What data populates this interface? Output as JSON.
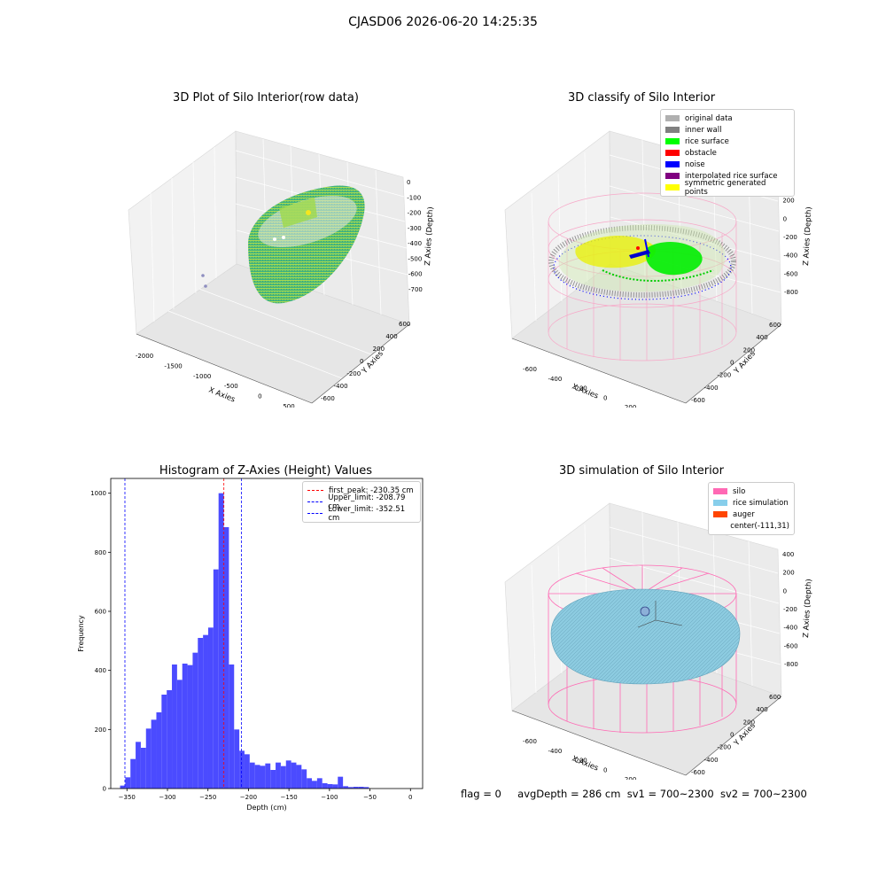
{
  "suptitle": "CJASD06 2026-06-20 14:25:35",
  "panels": {
    "raw": {
      "title": "3D Plot of Silo Interior(row data)",
      "xlabel": "X Axies",
      "ylabel": "Y Axies",
      "zlabel": "Z Axies (Depth)",
      "xticks": [
        "-2000",
        "-1500",
        "-1000",
        "-500",
        "0",
        "500"
      ],
      "yticks": [
        "-600",
        "-400",
        "-200",
        "0",
        "200",
        "400",
        "600"
      ],
      "zticks": [
        "0",
        "-100",
        "-200",
        "-300",
        "-400",
        "-500",
        "-600",
        "-700"
      ]
    },
    "classify": {
      "title": "3D classify of Silo Interior",
      "xlabel": "X Axies",
      "ylabel": "Y Axies",
      "zlabel": "Z Axies (Depth)",
      "xticks": [
        "-600",
        "-400",
        "-200",
        "0",
        "200",
        "400"
      ],
      "yticks": [
        "-600",
        "-400",
        "-200",
        "0",
        "200",
        "400",
        "600"
      ],
      "zticks": [
        "400",
        "200",
        "0",
        "-200",
        "-400",
        "-600",
        "-800"
      ],
      "legend": [
        {
          "label": "original data",
          "color": "#b0b0b0"
        },
        {
          "label": "inner wall",
          "color": "#808080"
        },
        {
          "label": "rice surface",
          "color": "#00ff00"
        },
        {
          "label": "obstacle",
          "color": "#ff0000"
        },
        {
          "label": "noise",
          "color": "#0000ff"
        },
        {
          "label": "interpolated rice surface",
          "color": "#800080"
        },
        {
          "label": "symmetric generated points",
          "color": "#ffff00"
        }
      ]
    },
    "simulation": {
      "title": "3D simulation of Silo Interior",
      "xlabel": "X Axies",
      "ylabel": "Y Axies",
      "zlabel": "Z Axies (Depth)",
      "xticks": [
        "-600",
        "-400",
        "-200",
        "0",
        "200",
        "400"
      ],
      "yticks": [
        "-600",
        "-400",
        "-200",
        "0",
        "200",
        "400",
        "600"
      ],
      "zticks": [
        "400",
        "200",
        "0",
        "-200",
        "-400",
        "-600",
        "-800"
      ],
      "legend": [
        {
          "label": "silo",
          "color": "#ff69b4"
        },
        {
          "label": "rice simulation",
          "color": "#87ceeb"
        },
        {
          "label": "auger",
          "color": "#ff4500"
        },
        {
          "label": "center(-111,31)",
          "color": ""
        }
      ]
    }
  },
  "chart_data": {
    "type": "bar",
    "title": "Histogram of Z-Axies (Height) Values",
    "xlabel": "Depth (cm)",
    "ylabel": "Frequency",
    "xlim": [
      -370,
      15
    ],
    "ylim": [
      0,
      1050
    ],
    "xticks": [
      -350,
      -300,
      -250,
      -200,
      -150,
      -100,
      -50,
      0
    ],
    "yticks": [
      0,
      200,
      400,
      600,
      800,
      1000
    ],
    "bar_color": "#4b4bff",
    "bins": {
      "start": -358.5,
      "width": 6.4,
      "values": [
        10,
        38,
        100,
        158,
        138,
        203,
        233,
        258,
        318,
        333,
        420,
        368,
        423,
        418,
        460,
        510,
        520,
        545,
        742,
        1000,
        885,
        420,
        200,
        128,
        116,
        88,
        80,
        77,
        85,
        63,
        88,
        76,
        95,
        88,
        80,
        65,
        35,
        26,
        35,
        18,
        15,
        14,
        40,
        8,
        5,
        6,
        6,
        5
      ]
    },
    "vlines": [
      {
        "label": "first_peak: -230.35 cm",
        "x": -230.35,
        "color": "#ff0000"
      },
      {
        "label": "Upper_limit: -208.79 cm",
        "x": -208.79,
        "color": "#0000ff"
      },
      {
        "label": "Lower_limit: -352.51 cm",
        "x": -352.51,
        "color": "#0000ff"
      }
    ]
  },
  "footer": {
    "flag": "flag = 0",
    "avg": "avgDepth = 286 cm",
    "sv1": "sv1 = 700~2300",
    "sv2": "sv2 = 700~2300"
  }
}
